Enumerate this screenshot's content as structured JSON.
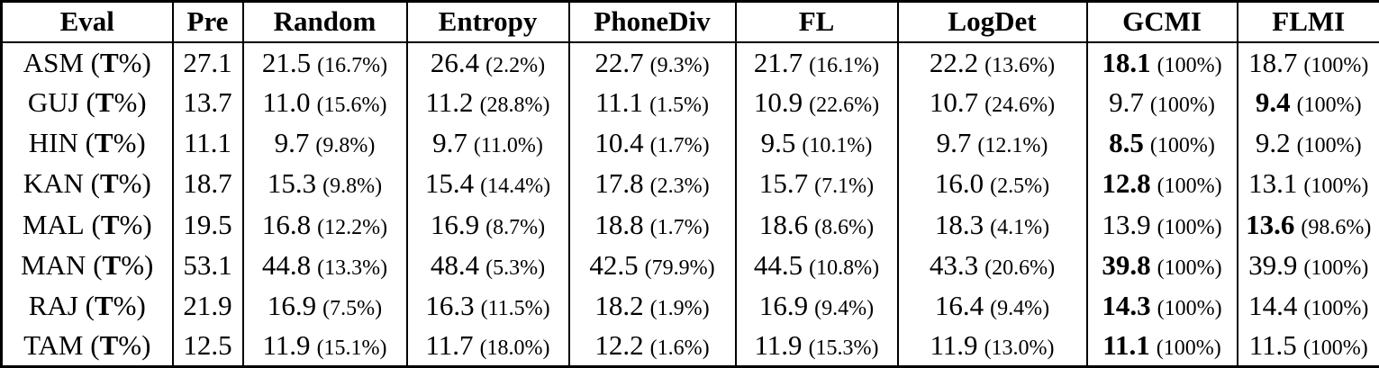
{
  "table": {
    "columns": [
      "Eval",
      "Pre",
      "Random",
      "Entropy",
      "PhoneDiv",
      "FL",
      "LogDet",
      "GCMI",
      "FLMI"
    ],
    "eval_label": {
      "open": "(",
      "bold_t": "T",
      "close": "%)"
    },
    "rows": [
      {
        "lang": "ASM",
        "cells": [
          {
            "v": "27.1"
          },
          {
            "v": "21.5",
            "p": "(16.7%)"
          },
          {
            "v": "26.4",
            "p": "(2.2%)"
          },
          {
            "v": "22.7",
            "p": "(9.3%)"
          },
          {
            "v": "21.7",
            "p": "(16.1%)"
          },
          {
            "v": "22.2",
            "p": "(13.6%)"
          },
          {
            "v": "18.1",
            "p": "(100%)",
            "bold": true
          },
          {
            "v": "18.7",
            "p": "(100%)"
          }
        ]
      },
      {
        "lang": "GUJ",
        "cells": [
          {
            "v": "13.7"
          },
          {
            "v": "11.0",
            "p": "(15.6%)"
          },
          {
            "v": "11.2",
            "p": "(28.8%)"
          },
          {
            "v": "11.1",
            "p": "(1.5%)"
          },
          {
            "v": "10.9",
            "p": "(22.6%)"
          },
          {
            "v": "10.7",
            "p": "(24.6%)"
          },
          {
            "v": "9.7",
            "p": "(100%)"
          },
          {
            "v": "9.4",
            "p": "(100%)",
            "bold": true
          }
        ]
      },
      {
        "lang": "HIN",
        "cells": [
          {
            "v": "11.1"
          },
          {
            "v": "9.7",
            "p": "(9.8%)"
          },
          {
            "v": "9.7",
            "p": "(11.0%)"
          },
          {
            "v": "10.4",
            "p": "(1.7%)"
          },
          {
            "v": "9.5",
            "p": "(10.1%)"
          },
          {
            "v": "9.7",
            "p": "(12.1%)"
          },
          {
            "v": "8.5",
            "p": "(100%)",
            "bold": true
          },
          {
            "v": "9.2",
            "p": "(100%)"
          }
        ]
      },
      {
        "lang": "KAN",
        "cells": [
          {
            "v": "18.7"
          },
          {
            "v": "15.3",
            "p": "(9.8%)"
          },
          {
            "v": "15.4",
            "p": "(14.4%)"
          },
          {
            "v": "17.8",
            "p": "(2.3%)"
          },
          {
            "v": "15.7",
            "p": "(7.1%)"
          },
          {
            "v": "16.0",
            "p": "(2.5%)"
          },
          {
            "v": "12.8",
            "p": "(100%)",
            "bold": true
          },
          {
            "v": "13.1",
            "p": "(100%)"
          }
        ]
      },
      {
        "lang": "MAL",
        "cells": [
          {
            "v": "19.5"
          },
          {
            "v": "16.8",
            "p": "(12.2%)"
          },
          {
            "v": "16.9",
            "p": "(8.7%)"
          },
          {
            "v": "18.8",
            "p": "(1.7%)"
          },
          {
            "v": "18.6",
            "p": "(8.6%)"
          },
          {
            "v": "18.3",
            "p": "(4.1%)"
          },
          {
            "v": "13.9",
            "p": "(100%)"
          },
          {
            "v": "13.6",
            "p": "(98.6%)",
            "bold": true
          }
        ]
      },
      {
        "lang": "MAN",
        "cells": [
          {
            "v": "53.1"
          },
          {
            "v": "44.8",
            "p": "(13.3%)"
          },
          {
            "v": "48.4",
            "p": "(5.3%)"
          },
          {
            "v": "42.5",
            "p": "(79.9%)"
          },
          {
            "v": "44.5",
            "p": "(10.8%)"
          },
          {
            "v": "43.3",
            "p": "(20.6%)"
          },
          {
            "v": "39.8",
            "p": "(100%)",
            "bold": true
          },
          {
            "v": "39.9",
            "p": "(100%)"
          }
        ]
      },
      {
        "lang": "RAJ",
        "cells": [
          {
            "v": "21.9"
          },
          {
            "v": "16.9",
            "p": "(7.5%)"
          },
          {
            "v": "16.3",
            "p": "(11.5%)"
          },
          {
            "v": "18.2",
            "p": "(1.9%)"
          },
          {
            "v": "16.9",
            "p": "(9.4%)"
          },
          {
            "v": "16.4",
            "p": "(9.4%)"
          },
          {
            "v": "14.3",
            "p": "(100%)",
            "bold": true
          },
          {
            "v": "14.4",
            "p": "(100%)"
          }
        ]
      },
      {
        "lang": "TAM",
        "cells": [
          {
            "v": "12.5"
          },
          {
            "v": "11.9",
            "p": "(15.1%)"
          },
          {
            "v": "11.7",
            "p": "(18.0%)"
          },
          {
            "v": "12.2",
            "p": "(1.6%)"
          },
          {
            "v": "11.9",
            "p": "(15.3%)"
          },
          {
            "v": "11.9",
            "p": "(13.0%)"
          },
          {
            "v": "11.1",
            "p": "(100%)",
            "bold": true
          },
          {
            "v": "11.5",
            "p": "(100%)"
          }
        ]
      }
    ]
  }
}
